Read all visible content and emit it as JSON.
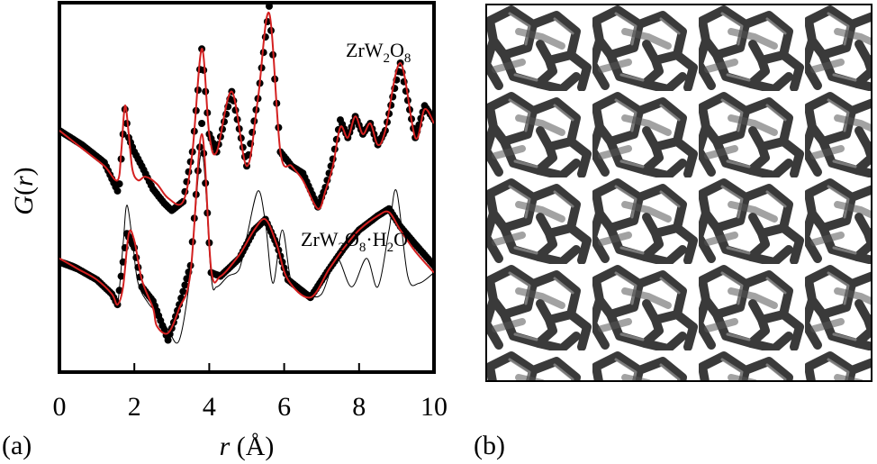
{
  "panel_labels": {
    "a": "(a)",
    "b": "(b)"
  },
  "chart_data": {
    "type": "line",
    "title": "",
    "xlabel": {
      "symbol": "r",
      "unit": "(Å)"
    },
    "ylabel": {
      "symbol": "G",
      "open": "(",
      "var": "r",
      "close": ")"
    },
    "xlim": [
      0,
      10
    ],
    "xticks": [
      0,
      2,
      4,
      6,
      8,
      10
    ],
    "tick_labels": [
      "0",
      "2",
      "4",
      "6",
      "8",
      "10"
    ],
    "ylim": [
      -4.2,
      6.2
    ],
    "yticks": [],
    "grid": false,
    "series_labels": {
      "top": {
        "base": "ZrW",
        "sub1": "2",
        "mid": "O",
        "sub2": "8"
      },
      "bottom": {
        "base": "ZrW",
        "sub1": "2",
        "mid": "O",
        "sub2": "8",
        "dot": "·H",
        "sub3": "2",
        "tail": "O"
      }
    },
    "colors": {
      "data": "#000000",
      "fit": "#d42020",
      "reference": "#000000",
      "frame": "#000000"
    },
    "series": [
      {
        "name": "ZrW2O8 data",
        "style": "points",
        "x": [
          0,
          0.6,
          1.2,
          1.55,
          1.6,
          1.75,
          1.85,
          2.0,
          2.2,
          2.5,
          2.8,
          3.0,
          3.3,
          3.55,
          3.8,
          4.0,
          4.2,
          4.6,
          5.0,
          5.3,
          5.6,
          5.9,
          6.2,
          6.5,
          6.9,
          7.1,
          7.3,
          7.5,
          7.7,
          7.9,
          8.1,
          8.3,
          8.5,
          8.7,
          9.1,
          9.5,
          9.75,
          10.0
        ],
        "y": [
          2.6,
          2.2,
          1.7,
          0.9,
          1.1,
          3.2,
          2.4,
          2.0,
          1.6,
          0.95,
          0.55,
          0.35,
          0.6,
          2.0,
          4.9,
          2.5,
          2.0,
          3.7,
          1.6,
          3.5,
          6.1,
          2.0,
          1.6,
          1.4,
          0.45,
          1.0,
          1.8,
          2.9,
          2.4,
          3.0,
          2.5,
          2.8,
          2.2,
          2.6,
          4.5,
          2.4,
          3.3,
          2.9
        ]
      },
      {
        "name": "ZrW2O8 fit",
        "style": "line",
        "x": [
          0,
          0.6,
          1.2,
          1.55,
          1.65,
          1.75,
          1.85,
          1.95,
          2.1,
          2.3,
          2.6,
          2.9,
          3.3,
          3.55,
          3.8,
          4.0,
          4.2,
          4.6,
          5.0,
          5.3,
          5.6,
          5.9,
          6.2,
          6.5,
          6.9,
          7.1,
          7.3,
          7.5,
          7.7,
          7.9,
          8.1,
          8.3,
          8.5,
          8.7,
          9.1,
          9.5,
          9.75,
          10.0
        ],
        "y": [
          2.6,
          2.1,
          1.6,
          1.2,
          2.0,
          3.3,
          2.5,
          1.5,
          1.2,
          1.3,
          1.1,
          0.7,
          0.6,
          2.0,
          4.9,
          2.5,
          2.0,
          3.7,
          1.6,
          3.5,
          5.9,
          2.0,
          1.6,
          1.2,
          0.4,
          0.9,
          1.6,
          2.7,
          2.4,
          3.0,
          2.5,
          2.8,
          2.2,
          2.6,
          4.5,
          2.4,
          3.2,
          2.8
        ]
      },
      {
        "name": "ZrW2O8·H2O data",
        "style": "points",
        "x": [
          0,
          0.5,
          1.0,
          1.4,
          1.55,
          1.8,
          2.0,
          2.2,
          2.5,
          2.9,
          3.2,
          3.5,
          3.8,
          4.05,
          4.3,
          4.8,
          5.2,
          5.5,
          5.8,
          6.1,
          6.7,
          7.2,
          7.6,
          8.0,
          8.5,
          8.8,
          9.1,
          9.5,
          10.0
        ],
        "y": [
          -1.1,
          -1.3,
          -1.6,
          -2.0,
          -2.3,
          -0.3,
          -0.7,
          -1.8,
          -2.2,
          -3.3,
          -2.3,
          -1.2,
          2.8,
          -1.4,
          -1.5,
          -1.0,
          -0.2,
          0.1,
          -0.6,
          -1.6,
          -2.1,
          -1.3,
          -0.7,
          -0.2,
          0.2,
          0.4,
          -0.1,
          -0.6,
          -1.2
        ]
      },
      {
        "name": "ZrW2O8·H2O fit",
        "style": "line",
        "x": [
          0,
          0.5,
          1.0,
          1.4,
          1.55,
          1.7,
          1.85,
          2.0,
          2.2,
          2.5,
          2.6,
          2.9,
          3.2,
          3.5,
          3.8,
          4.05,
          4.3,
          4.8,
          5.2,
          5.5,
          5.8,
          6.1,
          6.7,
          7.2,
          7.6,
          8.0,
          8.5,
          8.8,
          9.1,
          9.5,
          10.0
        ],
        "y": [
          -1.0,
          -1.3,
          -1.6,
          -2.0,
          -2.3,
          -1.8,
          -0.3,
          -0.5,
          -1.6,
          -2.4,
          -2.9,
          -3.1,
          -2.4,
          -1.4,
          2.5,
          -1.3,
          -1.5,
          -0.9,
          -0.2,
          0.1,
          -0.6,
          -1.6,
          -2.1,
          -1.3,
          -0.7,
          -0.2,
          0.2,
          0.3,
          -0.2,
          -0.8,
          -1.4
        ]
      },
      {
        "name": "reference",
        "style": "thin-line",
        "x": [
          0,
          0.5,
          1.0,
          1.4,
          1.55,
          1.7,
          1.8,
          1.95,
          2.1,
          2.4,
          2.6,
          2.9,
          3.2,
          3.5,
          3.8,
          4.05,
          4.2,
          4.5,
          4.8,
          5.0,
          5.3,
          5.5,
          5.7,
          5.95,
          6.2,
          6.6,
          7.0,
          7.4,
          7.8,
          8.2,
          8.5,
          8.8,
          9.0,
          9.3,
          9.6,
          10.0
        ],
        "y": [
          -1.0,
          -1.2,
          -1.6,
          -2.0,
          -2.3,
          -0.6,
          0.5,
          -0.5,
          -1.7,
          -2.3,
          -2.5,
          -3.0,
          -3.3,
          -1.4,
          2.0,
          -1.5,
          -1.8,
          -1.5,
          -1.3,
          -0.4,
          0.9,
          0.0,
          -1.7,
          -0.2,
          -1.7,
          -2.0,
          -2.0,
          -1.0,
          -1.8,
          -1.0,
          -1.8,
          -0.2,
          0.9,
          -1.5,
          -1.7,
          -1.4
        ]
      }
    ]
  },
  "network_panel": {
    "description_shown": false
  }
}
